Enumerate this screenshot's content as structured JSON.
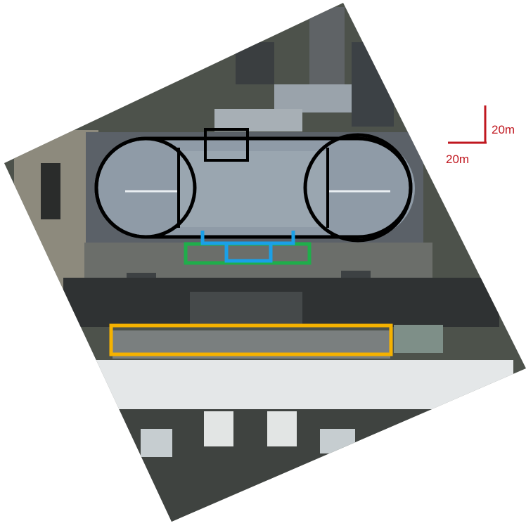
{
  "image": {
    "kind": "annotated satellite view, rotated",
    "colors": {
      "ground": "#4a4f47",
      "roof_main": "#8e9aa6",
      "roof_white": "#e6e9ea",
      "annotation_black": "#000000",
      "annotation_blue": "#1aa0e8",
      "annotation_green": "#1fae4b",
      "annotation_orange": "#f5b200",
      "scale_red": "#c0171f"
    }
  },
  "annotations": [
    {
      "id": "pylon-circles-outline",
      "color": "black",
      "shape": "stadium with two circles"
    },
    {
      "id": "top-small-rectangle",
      "color": "black",
      "shape": "rectangle"
    },
    {
      "id": "blue-bracket",
      "color": "blue",
      "shape": "bracket"
    },
    {
      "id": "green-rectangle",
      "color": "green",
      "shape": "rectangle"
    },
    {
      "id": "orange-rectangle",
      "color": "orange",
      "shape": "rectangle"
    }
  ],
  "scale_bar": {
    "vertical_label": "20m",
    "horizontal_label": "20m",
    "color": "#c0171f"
  }
}
